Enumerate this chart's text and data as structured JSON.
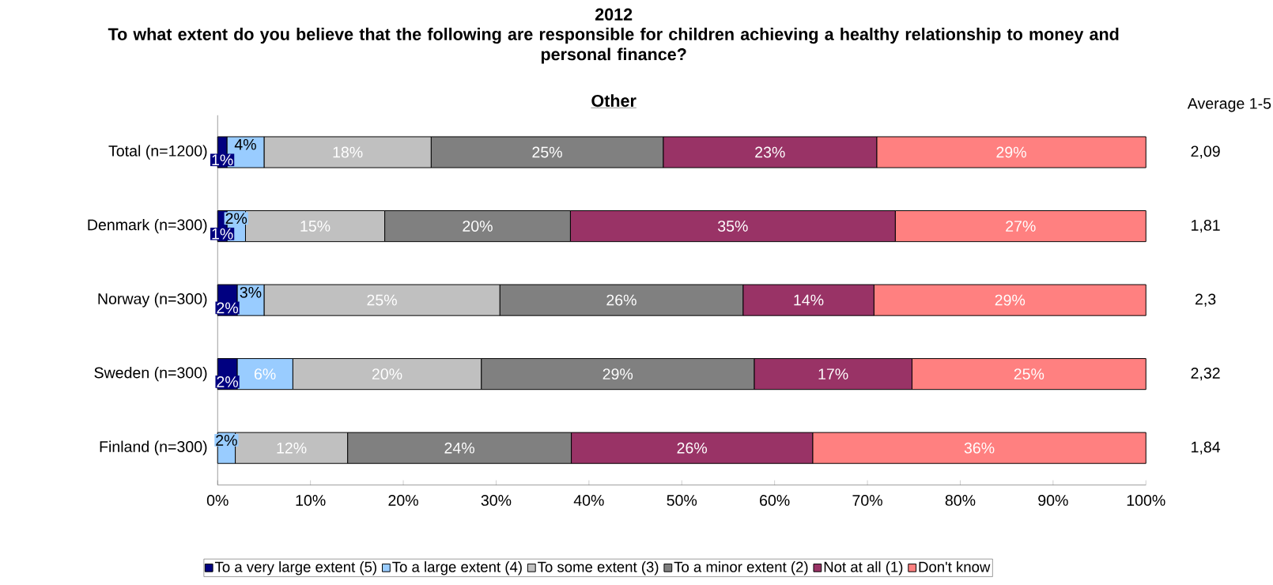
{
  "chart_data": {
    "type": "bar",
    "orientation": "horizontal",
    "stacked": true,
    "title": "2012",
    "subtitle": "To what extent do you believe that the following are responsible for children achieving a healthy relationship to money and personal finance?",
    "categories": [
      "Total (n=1200)",
      "Denmark (n=300)",
      "Norway (n=300)",
      "Sweden (n=300)",
      "Finland (n=300)"
    ],
    "series": [
      {
        "name": "To a very large extent (5)",
        "color": "#000080",
        "values": [
          1,
          1,
          2.1,
          2.1,
          0
        ],
        "value_labels": [
          "1%",
          "1%",
          "2%",
          "2%",
          null
        ]
      },
      {
        "name": "To a large extent (4)",
        "color": "#99ccff",
        "values": [
          4,
          2,
          2.9,
          6.0,
          1.9
        ],
        "value_labels": [
          "4%",
          "2%",
          "3%",
          "6%",
          "2%"
        ]
      },
      {
        "name": "To some extent (3)",
        "color": "#c0c0c0",
        "values": [
          18,
          15,
          25.4,
          20.3,
          12.1
        ],
        "value_labels": [
          "18%",
          "15%",
          "25%",
          "20%",
          "12%"
        ]
      },
      {
        "name": "To a minor extent (2)",
        "color": "#808080",
        "values": [
          25,
          20,
          26.2,
          29.4,
          24.1
        ],
        "value_labels": [
          "25%",
          "20%",
          "26%",
          "29%",
          "24%"
        ]
      },
      {
        "name": "Not at all (1)",
        "color": "#993366",
        "values": [
          23,
          35,
          14.1,
          17.0,
          26.0
        ],
        "value_labels": [
          "23%",
          "35%",
          "14%",
          "17%",
          "26%"
        ]
      },
      {
        "name": "Don't know",
        "color": "#ff8080",
        "values": [
          29,
          27,
          29.3,
          25.2,
          35.9
        ],
        "value_labels": [
          "29%",
          "27%",
          "29%",
          "25%",
          "36%"
        ]
      }
    ],
    "xlim": [
      0,
      100
    ],
    "xticks": [
      {
        "value": 0,
        "label": "0%"
      },
      {
        "value": 10,
        "label": "10%"
      },
      {
        "value": 20,
        "label": "20%"
      },
      {
        "value": 30,
        "label": "30%"
      },
      {
        "value": 40,
        "label": "40%"
      },
      {
        "value": 50,
        "label": "50%"
      },
      {
        "value": 60,
        "label": "60%"
      },
      {
        "value": 70,
        "label": "70%"
      },
      {
        "value": 80,
        "label": "80%"
      },
      {
        "value": 90,
        "label": "90%"
      },
      {
        "value": 100,
        "label": "100%"
      }
    ],
    "legend": "bottom",
    "annotations": [
      "Other",
      "Average 1-5",
      "2,09",
      "1,81",
      "2,3",
      "2,32",
      "1,84"
    ]
  }
}
